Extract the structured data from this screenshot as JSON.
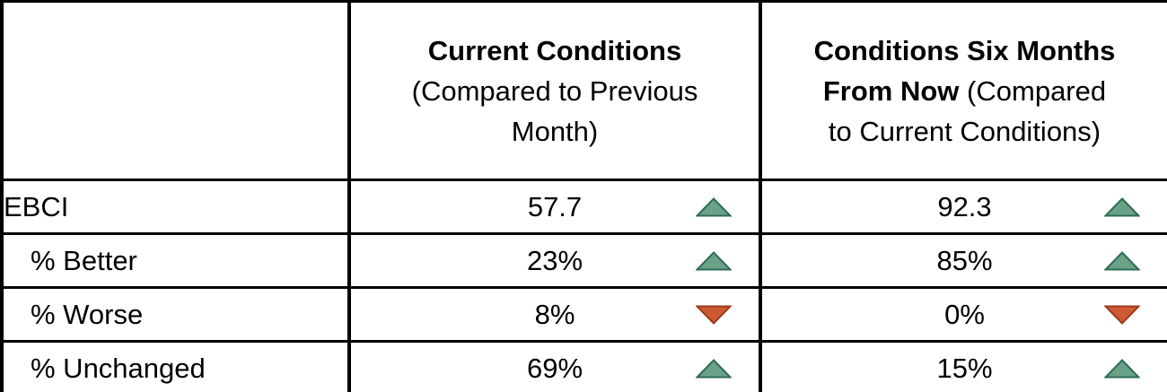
{
  "table": {
    "header": {
      "row_label_column": "",
      "current": {
        "lines": [
          [
            {
              "text": "Current Conditions",
              "bold": true
            }
          ],
          [
            {
              "text": "(Compared to Previous",
              "bold": false
            }
          ],
          [
            {
              "text": "Month)",
              "bold": false
            }
          ]
        ]
      },
      "future": {
        "lines": [
          [
            {
              "text": "Conditions Six Months",
              "bold": true
            }
          ],
          [
            {
              "text": "From Now",
              "bold": true
            },
            {
              "text": " (Compared",
              "bold": false
            }
          ],
          [
            {
              "text": "to Current Conditions)",
              "bold": false
            }
          ]
        ]
      }
    },
    "rows": [
      {
        "label": "EBCI",
        "indent": false,
        "current": {
          "value": "57.7",
          "trend": "up"
        },
        "future": {
          "value": "92.3",
          "trend": "up"
        }
      },
      {
        "label": "% Better",
        "indent": true,
        "current": {
          "value": "23%",
          "trend": "up"
        },
        "future": {
          "value": "85%",
          "trend": "up"
        }
      },
      {
        "label": "% Worse",
        "indent": true,
        "current": {
          "value": "8%",
          "trend": "down"
        },
        "future": {
          "value": "0%",
          "trend": "down"
        }
      },
      {
        "label": "% Unchanged",
        "indent": true,
        "current": {
          "value": "69%",
          "trend": "up"
        },
        "future": {
          "value": "15%",
          "trend": "up"
        }
      }
    ]
  },
  "colors": {
    "trend_up_fill": "#69A287",
    "trend_up_border": "#2E6B54",
    "trend_down_fill": "#CE5A35",
    "trend_down_border": "#9C3A1C",
    "grid": "#000000"
  },
  "chart_data": {
    "type": "table",
    "columns": [
      "",
      "Current Conditions (Compared to Previous Month)",
      "Conditions Six Months From Now (Compared to Current Conditions)"
    ],
    "rows": [
      {
        "label": "EBCI",
        "current": 57.7,
        "current_trend": "up",
        "six_months": 92.3,
        "six_months_trend": "up"
      },
      {
        "label": "% Better",
        "current": "23%",
        "current_trend": "up",
        "six_months": "85%",
        "six_months_trend": "up"
      },
      {
        "label": "% Worse",
        "current": "8%",
        "current_trend": "down",
        "six_months": "0%",
        "six_months_trend": "down"
      },
      {
        "label": "% Unchanged",
        "current": "69%",
        "current_trend": "up",
        "six_months": "15%",
        "six_months_trend": "up"
      }
    ]
  }
}
